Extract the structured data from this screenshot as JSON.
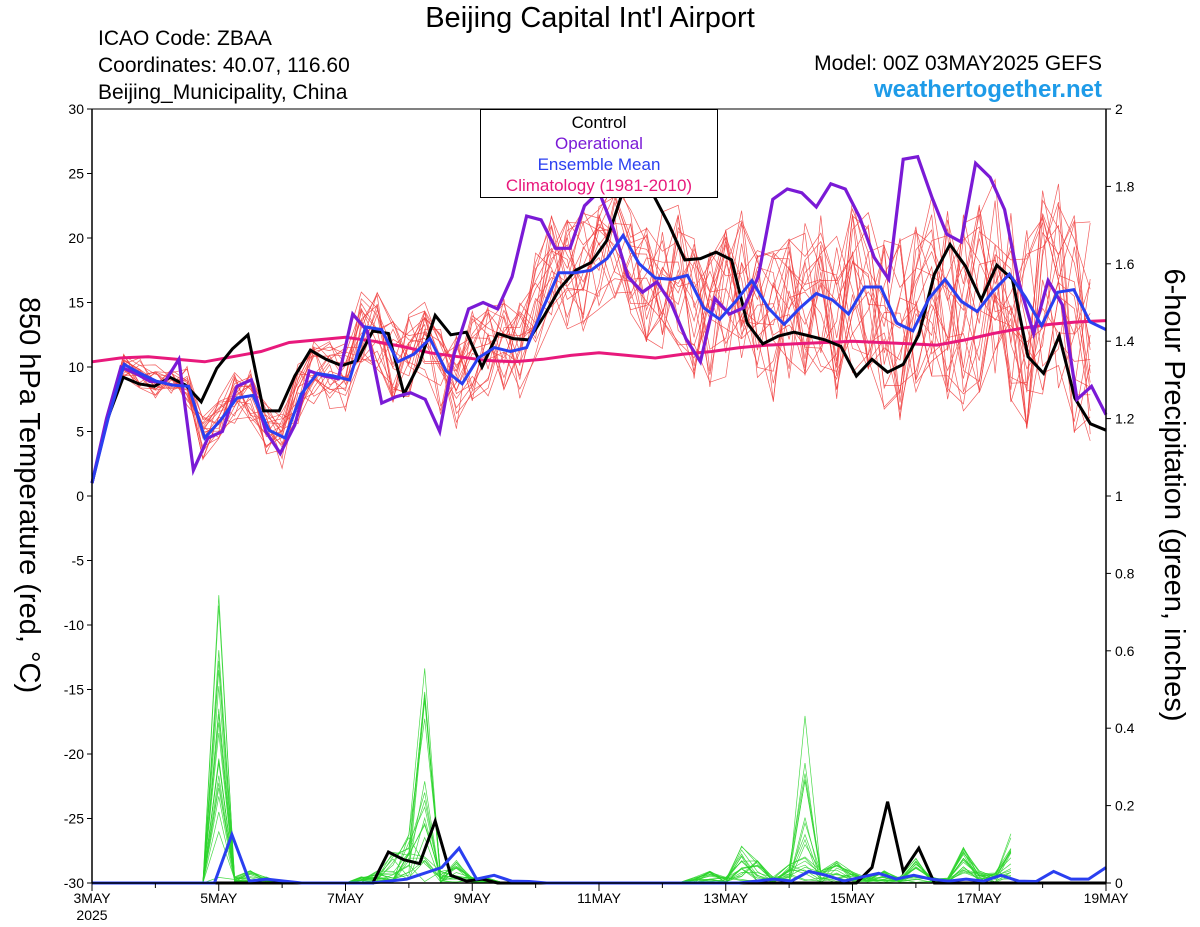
{
  "header": {
    "title": "Beijing Capital Int'l Airport",
    "icao": "ICAO Code: ZBAA",
    "coords": "Coordinates: 40.07, 116.60",
    "region": "Beijing_Municipality, China",
    "model": "Model: 00Z 03MAY2025 GEFS",
    "site": "weathertogether.net"
  },
  "legend": {
    "control": "Control",
    "operational": "Operational",
    "mean": "Ensemble Mean",
    "climo": "Climatology (1981-2010)"
  },
  "colors": {
    "control": "#000000",
    "operational": "#7a1ad6",
    "mean": "#2a3ff0",
    "climo": "#e8197c",
    "members_temp": "#f04040",
    "members_precip": "#2ad42a"
  },
  "chart_data": {
    "type": "line",
    "ylabel": "850 hPa Temperature (red, °C)",
    "y2label": "6-hour Precipitation (green, inches)",
    "ylim": [
      -30,
      30
    ],
    "y2lim": [
      0,
      2
    ],
    "yticks": [
      -30,
      -25,
      -20,
      -15,
      -10,
      -5,
      0,
      5,
      10,
      15,
      20,
      25,
      30
    ],
    "y2ticks": [
      "0",
      "0.2",
      "0.4",
      "0.6",
      "0.8",
      "1",
      "1.2",
      "1.4",
      "1.6",
      "1.8",
      "2"
    ],
    "xlim_days": [
      0,
      16
    ],
    "x_start": "3MAY 2025",
    "x_tick_labels": [
      "3MAY",
      "5MAY",
      "7MAY",
      "9MAY",
      "11MAY",
      "13MAY",
      "15MAY",
      "17MAY",
      "19MAY"
    ],
    "x_year_label": "2025",
    "step_hours": 6,
    "temperature": {
      "control": [
        1,
        6,
        9.2,
        8.7,
        8.5,
        9.2,
        8.6,
        7.3,
        9.9,
        11.4,
        12.5,
        6.6,
        6.6,
        9.3,
        11.3,
        10.6,
        10.1,
        10.5,
        12.8,
        12.6,
        7.9,
        10.3,
        14,
        12.5,
        12.7,
        10,
        12.6,
        12.2,
        12.1,
        14,
        16.1,
        17.5,
        18.1,
        19.8,
        23.5,
        23.7,
        23.3,
        21,
        18.3,
        18.4,
        18.9,
        18.3,
        13.4,
        11.8,
        12.4,
        12.7,
        12.4,
        12.1,
        11.6,
        9.3,
        10.6,
        9.6,
        10.2,
        12.5,
        17.2,
        19.5,
        17.8,
        15.2,
        17.9,
        16.8,
        10.8,
        9.5,
        12.4,
        7.6,
        5.6,
        5.1
      ],
      "operational": [
        1,
        6,
        10,
        9.5,
        8.9,
        8.8,
        10.6,
        2,
        4.5,
        5,
        8.5,
        9,
        5,
        3.3,
        5.5,
        9.7,
        9.3,
        9.1,
        14.1,
        12.8,
        7.2,
        7.7,
        8,
        7.5,
        5,
        11,
        14.5,
        15,
        14.5,
        17,
        21.7,
        21.4,
        19.2,
        19.2,
        22.5,
        23.6,
        20.7,
        17,
        15.8,
        16.6,
        14.9,
        12.2,
        10.4,
        15.3,
        14.1,
        14.6,
        17,
        23,
        23.8,
        23.5,
        22.4,
        24.2,
        23.8,
        21.6,
        18.5,
        16.8,
        26.1,
        26.3,
        23.1,
        20.3,
        19.7,
        25.8,
        24.7,
        22.2,
        16.5,
        12.6,
        16.7,
        14.8,
        7.5,
        8.5,
        6.3
      ],
      "mean": [
        1,
        6,
        10.2,
        9.5,
        8.9,
        8.6,
        8.5,
        4.5,
        5.9,
        7.6,
        7.8,
        5.1,
        4.5,
        7.9,
        9.5,
        9.3,
        9,
        13.1,
        12.9,
        10.4,
        11,
        12.2,
        9.7,
        8.7,
        10.7,
        11.5,
        11.2,
        11.5,
        14.5,
        17.3,
        17.3,
        17.5,
        18.4,
        20.2,
        18,
        16.9,
        16.8,
        17.1,
        14.6,
        13.7,
        15.1,
        16.7,
        14.6,
        13.3,
        14.6,
        15.7,
        15.2,
        14.1,
        16.2,
        16.2,
        13.4,
        12.8,
        15.3,
        16.8,
        15.1,
        14.3,
        15.9,
        17.2,
        15.4,
        13.2,
        15.8,
        16,
        13.5,
        12.9
      ],
      "climatology": [
        10.4,
        10.7,
        10.8,
        10.6,
        10.4,
        10.8,
        11.2,
        11.9,
        12.1,
        12.3,
        12,
        11.6,
        11.1,
        10.8,
        10.5,
        10.4,
        10.6,
        10.9,
        11.1,
        10.9,
        10.7,
        11,
        11.2,
        11.5,
        11.7,
        11.8,
        11.9,
        12,
        11.9,
        11.8,
        11.7,
        12.1,
        12.6,
        13,
        13.3,
        13.5,
        13.6
      ]
    },
    "precipitation": {
      "control": [
        0,
        0,
        0,
        0,
        0,
        0,
        0,
        0,
        0,
        0,
        0,
        0,
        0,
        0,
        0,
        0,
        0,
        0,
        0,
        0.08,
        0.06,
        0.05,
        0.16,
        0.02,
        0.005,
        0.01,
        0,
        0,
        0,
        0,
        0,
        0,
        0,
        0,
        0,
        0,
        0,
        0,
        0,
        0,
        0,
        0,
        0,
        0,
        0,
        0,
        0,
        0,
        0,
        0,
        0.04,
        0.21,
        0.03,
        0.09,
        0,
        0,
        0,
        0,
        0,
        0,
        0,
        0,
        0,
        0,
        0,
        0
      ],
      "mean": [
        0,
        0,
        0,
        0,
        0,
        0,
        0,
        0,
        0.125,
        0.005,
        0.01,
        0.005,
        0,
        0,
        0,
        0,
        0,
        0.005,
        0.01,
        0.025,
        0.04,
        0.09,
        0.01,
        0.02,
        0.005,
        0.004,
        0,
        0,
        0,
        0,
        0,
        0,
        0,
        0,
        0,
        0,
        0,
        0,
        0.005,
        0.01,
        0.005,
        0.03,
        0.02,
        0.005,
        0.015,
        0.025,
        0.01,
        0.02,
        0.01,
        0.005,
        0.01,
        0.005,
        0.02,
        0.005,
        0.004,
        0.03,
        0.01,
        0.01,
        0.04
      ]
    }
  }
}
